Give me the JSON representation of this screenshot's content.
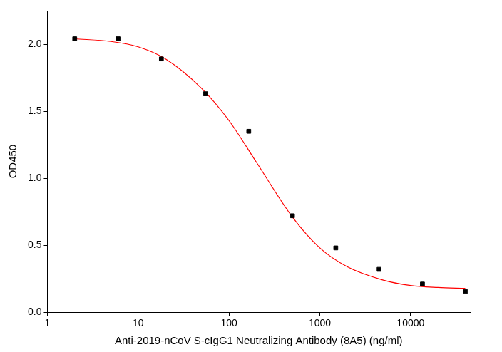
{
  "chart_data": {
    "type": "scatter",
    "x_label": "Anti-2019-nCoV S-cIgG1 Neutralizing Antibody (8A5) (ng/ml)",
    "y_label": "OD450",
    "log": "x",
    "grid": false,
    "xlim": [
      1,
      45000
    ],
    "xticks": [
      1,
      10,
      100,
      1000,
      10000
    ],
    "ylim": [
      0,
      2.25
    ],
    "yticks": [
      {
        "value": 0,
        "label": "0.0"
      },
      0.5,
      {
        "value": 1,
        "label": "1.0"
      },
      1.5,
      {
        "value": 2,
        "label": "2.0"
      }
    ],
    "series": [
      {
        "type": "scatter",
        "color": "#000000",
        "marker": "square",
        "x": [
          2,
          6,
          18,
          55,
          165,
          500,
          1500,
          4500,
          13500,
          40000
        ],
        "values": [
          2.04,
          2.04,
          1.89,
          1.63,
          1.35,
          0.72,
          0.48,
          0.32,
          0.21,
          0.155
        ]
      },
      {
        "type": "line",
        "color": "#ff0000",
        "marker": "none",
        "line_style": "solid",
        "x": [
          2,
          5,
          10,
          20,
          50,
          100,
          200,
          500,
          1000,
          2000,
          5000,
          10000,
          20000,
          40000
        ],
        "values": [
          2.04,
          2.02,
          1.98,
          1.89,
          1.67,
          1.43,
          1.12,
          0.71,
          0.48,
          0.34,
          0.24,
          0.2,
          0.185,
          0.178
        ]
      }
    ]
  }
}
